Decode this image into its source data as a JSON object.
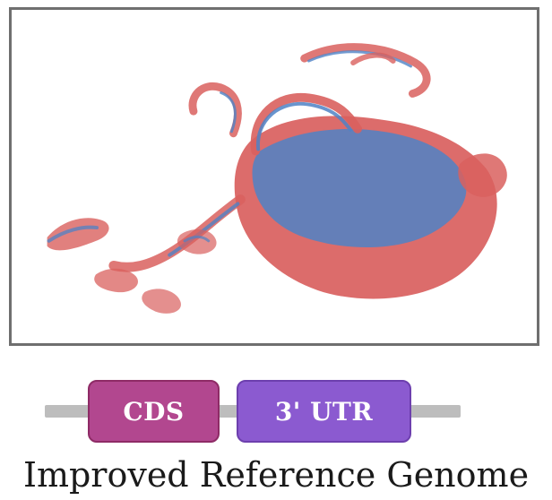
{
  "scatter": {
    "colors": {
      "red": "#d9605e",
      "blue": "#4f82c5"
    }
  },
  "gene_track": {
    "cds_label": "CDS",
    "utr_label": "3' UTR",
    "cds_color": "#b2478f",
    "utr_color": "#8b5ad0",
    "line_color": "#bdbdbd"
  },
  "caption": "Improved Reference Genome"
}
